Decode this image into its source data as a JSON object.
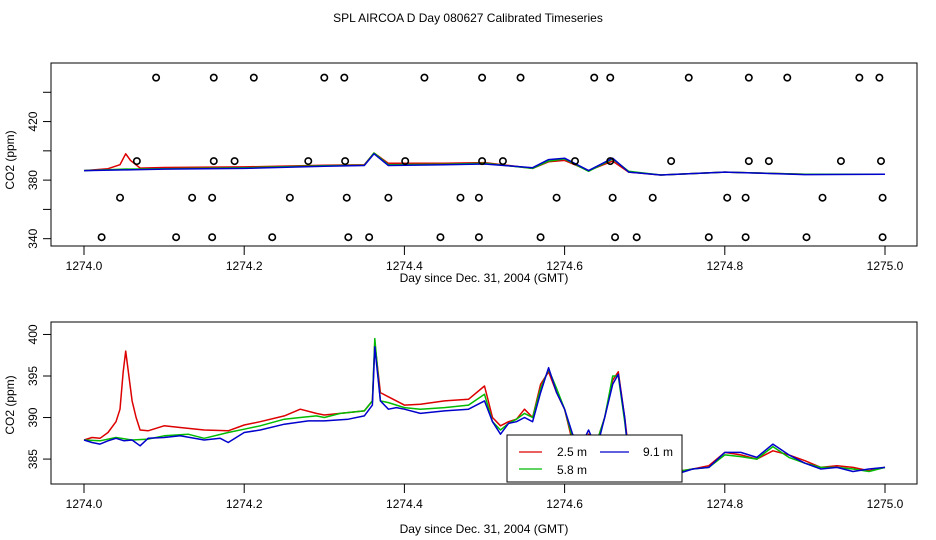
{
  "title": "SPL AIRCOA D  Day 080627  Calibrated Timeseries",
  "colors": {
    "2.5 m": "#dd0000",
    "5.8 m": "#00bb00",
    "9.1 m": "#0000cc",
    "axes": "#000000"
  },
  "chart_data": [
    {
      "type": "line",
      "xlabel": "Day since Dec. 31, 2004 (GMT)",
      "ylabel": "CO2 (ppm)",
      "xlim": [
        1274.0,
        1275.0
      ],
      "ylim": [
        335,
        460
      ],
      "xticks": [
        "1274.0",
        "1274.2",
        "1274.4",
        "1274.6",
        "1274.8",
        "1275.0"
      ],
      "yticks": [
        "340",
        "380",
        "420"
      ],
      "grid": false,
      "series": [
        {
          "name": "2.5 m",
          "color": "#dd0000",
          "x": [
            1274.0,
            1274.03,
            1274.045,
            1274.052,
            1274.058,
            1274.07,
            1274.1,
            1274.2,
            1274.3,
            1274.35,
            1274.362,
            1274.38,
            1274.45,
            1274.5,
            1274.56,
            1274.58,
            1274.6,
            1274.63,
            1274.66,
            1274.68,
            1274.72,
            1274.8,
            1274.9,
            1275.0
          ],
          "y": [
            386.5,
            387.8,
            390.5,
            398.0,
            393.5,
            388.2,
            388.6,
            389.0,
            390.2,
            390.5,
            398.5,
            391.5,
            391.5,
            392.0,
            388.0,
            392.5,
            393.5,
            386.5,
            393.0,
            385.5,
            383.5,
            385.5,
            384.0,
            384.0
          ]
        },
        {
          "name": "5.8 m",
          "color": "#00bb00",
          "x": [
            1274.0,
            1274.05,
            1274.1,
            1274.2,
            1274.3,
            1274.35,
            1274.362,
            1274.38,
            1274.45,
            1274.5,
            1274.56,
            1274.58,
            1274.6,
            1274.63,
            1274.66,
            1274.68,
            1274.72,
            1274.8,
            1274.9,
            1275.0
          ],
          "y": [
            386.5,
            387.5,
            387.8,
            388.5,
            389.8,
            390.2,
            398.5,
            390.5,
            390.8,
            391.5,
            388.0,
            393.0,
            394.5,
            386.0,
            394.5,
            386.0,
            383.5,
            385.5,
            384.0,
            384.0
          ]
        },
        {
          "name": "9.1 m",
          "color": "#0000cc",
          "x": [
            1274.0,
            1274.05,
            1274.1,
            1274.2,
            1274.3,
            1274.35,
            1274.362,
            1274.38,
            1274.45,
            1274.5,
            1274.56,
            1274.58,
            1274.6,
            1274.63,
            1274.66,
            1274.68,
            1274.72,
            1274.8,
            1274.9,
            1275.0
          ],
          "y": [
            386.5,
            387.0,
            387.5,
            388.0,
            389.5,
            390.0,
            398.0,
            390.0,
            390.5,
            391.0,
            388.5,
            394.0,
            395.0,
            386.5,
            395.0,
            385.5,
            383.5,
            385.5,
            383.8,
            384.0
          ]
        }
      ],
      "outlier_markers": [
        {
          "x": 1274.09,
          "y": 450
        },
        {
          "x": 1274.162,
          "y": 450
        },
        {
          "x": 1274.212,
          "y": 450
        },
        {
          "x": 1274.3,
          "y": 450
        },
        {
          "x": 1274.325,
          "y": 450
        },
        {
          "x": 1274.425,
          "y": 450
        },
        {
          "x": 1274.497,
          "y": 450
        },
        {
          "x": 1274.545,
          "y": 450
        },
        {
          "x": 1274.637,
          "y": 450
        },
        {
          "x": 1274.657,
          "y": 450
        },
        {
          "x": 1274.755,
          "y": 450
        },
        {
          "x": 1274.83,
          "y": 450
        },
        {
          "x": 1274.878,
          "y": 450
        },
        {
          "x": 1274.968,
          "y": 450
        },
        {
          "x": 1274.993,
          "y": 450
        },
        {
          "x": 1274.066,
          "y": 393
        },
        {
          "x": 1274.162,
          "y": 393
        },
        {
          "x": 1274.188,
          "y": 393
        },
        {
          "x": 1274.28,
          "y": 393
        },
        {
          "x": 1274.326,
          "y": 393
        },
        {
          "x": 1274.401,
          "y": 393
        },
        {
          "x": 1274.497,
          "y": 393
        },
        {
          "x": 1274.523,
          "y": 393
        },
        {
          "x": 1274.613,
          "y": 393
        },
        {
          "x": 1274.657,
          "y": 393
        },
        {
          "x": 1274.733,
          "y": 393
        },
        {
          "x": 1274.83,
          "y": 393
        },
        {
          "x": 1274.855,
          "y": 393
        },
        {
          "x": 1274.945,
          "y": 393
        },
        {
          "x": 1274.995,
          "y": 393
        },
        {
          "x": 1274.045,
          "y": 368
        },
        {
          "x": 1274.135,
          "y": 368
        },
        {
          "x": 1274.16,
          "y": 368
        },
        {
          "x": 1274.257,
          "y": 368
        },
        {
          "x": 1274.328,
          "y": 368
        },
        {
          "x": 1274.38,
          "y": 368
        },
        {
          "x": 1274.47,
          "y": 368
        },
        {
          "x": 1274.493,
          "y": 368
        },
        {
          "x": 1274.59,
          "y": 368
        },
        {
          "x": 1274.66,
          "y": 368
        },
        {
          "x": 1274.71,
          "y": 368
        },
        {
          "x": 1274.803,
          "y": 368
        },
        {
          "x": 1274.826,
          "y": 368
        },
        {
          "x": 1274.922,
          "y": 368
        },
        {
          "x": 1274.997,
          "y": 368
        },
        {
          "x": 1274.022,
          "y": 341
        },
        {
          "x": 1274.115,
          "y": 341
        },
        {
          "x": 1274.16,
          "y": 341
        },
        {
          "x": 1274.235,
          "y": 341
        },
        {
          "x": 1274.33,
          "y": 341
        },
        {
          "x": 1274.356,
          "y": 341
        },
        {
          "x": 1274.445,
          "y": 341
        },
        {
          "x": 1274.493,
          "y": 341
        },
        {
          "x": 1274.57,
          "y": 341
        },
        {
          "x": 1274.663,
          "y": 341
        },
        {
          "x": 1274.69,
          "y": 341
        },
        {
          "x": 1274.78,
          "y": 341
        },
        {
          "x": 1274.826,
          "y": 341
        },
        {
          "x": 1274.902,
          "y": 341
        },
        {
          "x": 1274.997,
          "y": 341
        }
      ]
    },
    {
      "type": "line",
      "xlabel": "Day since Dec. 31, 2004 (GMT)",
      "ylabel": "CO2 (ppm)",
      "xlim": [
        1274.0,
        1275.0
      ],
      "ylim": [
        382,
        401.5
      ],
      "xticks": [
        "1274.0",
        "1274.2",
        "1274.4",
        "1274.6",
        "1274.8",
        "1275.0"
      ],
      "yticks": [
        "385",
        "390",
        "395",
        "400"
      ],
      "grid": false,
      "legend": {
        "position": "bottom-right",
        "entries": [
          "2.5 m",
          "5.8 m",
          "9.1 m"
        ]
      },
      "series": [
        {
          "name": "2.5 m",
          "color": "#dd0000",
          "x": [
            1274.0,
            1274.01,
            1274.02,
            1274.03,
            1274.04,
            1274.045,
            1274.049,
            1274.052,
            1274.056,
            1274.06,
            1274.065,
            1274.07,
            1274.08,
            1274.1,
            1274.12,
            1274.15,
            1274.18,
            1274.2,
            1274.22,
            1274.25,
            1274.27,
            1274.29,
            1274.3,
            1274.32,
            1274.35,
            1274.36,
            1274.363,
            1274.37,
            1274.38,
            1274.4,
            1274.42,
            1274.45,
            1274.48,
            1274.5,
            1274.51,
            1274.52,
            1274.53,
            1274.54,
            1274.55,
            1274.56,
            1274.57,
            1274.58,
            1274.59,
            1274.6,
            1274.61,
            1274.62,
            1274.63,
            1274.64,
            1274.65,
            1274.66,
            1274.667,
            1274.675,
            1274.68,
            1274.69,
            1274.7,
            1274.72,
            1274.74,
            1274.76,
            1274.78,
            1274.8,
            1274.82,
            1274.84,
            1274.86,
            1274.88,
            1274.9,
            1274.92,
            1274.94,
            1274.96,
            1274.98,
            1275.0
          ],
          "y": [
            387.3,
            387.6,
            387.5,
            388.2,
            389.5,
            391.0,
            395.5,
            398.0,
            395.0,
            392.0,
            390.0,
            388.5,
            388.4,
            389.0,
            388.8,
            388.5,
            388.4,
            389.1,
            389.5,
            390.2,
            391.0,
            390.5,
            390.3,
            390.5,
            390.8,
            392.0,
            399.0,
            393.0,
            392.5,
            391.5,
            391.6,
            392.0,
            392.2,
            393.8,
            390.0,
            389.0,
            389.5,
            389.8,
            391.0,
            390.0,
            394.0,
            395.5,
            393.0,
            391.0,
            387.0,
            386.0,
            388.0,
            387.0,
            390.0,
            394.5,
            395.5,
            390.0,
            386.0,
            385.5,
            384.0,
            383.5,
            383.5,
            383.8,
            384.2,
            385.8,
            385.5,
            385.0,
            386.0,
            385.5,
            384.8,
            384.0,
            384.2,
            384.0,
            383.6,
            384.0
          ]
        },
        {
          "name": "5.8 m",
          "color": "#00bb00",
          "x": [
            1274.0,
            1274.02,
            1274.04,
            1274.06,
            1274.08,
            1274.1,
            1274.13,
            1274.15,
            1274.18,
            1274.2,
            1274.22,
            1274.25,
            1274.27,
            1274.29,
            1274.3,
            1274.32,
            1274.35,
            1274.36,
            1274.363,
            1274.37,
            1274.38,
            1274.4,
            1274.42,
            1274.45,
            1274.48,
            1274.5,
            1274.51,
            1274.52,
            1274.53,
            1274.54,
            1274.55,
            1274.56,
            1274.57,
            1274.58,
            1274.59,
            1274.6,
            1274.61,
            1274.62,
            1274.63,
            1274.64,
            1274.65,
            1274.66,
            1274.667,
            1274.675,
            1274.68,
            1274.69,
            1274.7,
            1274.72,
            1274.74,
            1274.76,
            1274.78,
            1274.8,
            1274.82,
            1274.84,
            1274.86,
            1274.88,
            1274.9,
            1274.92,
            1274.94,
            1274.96,
            1274.98,
            1275.0
          ],
          "y": [
            387.3,
            387.2,
            387.6,
            387.3,
            387.4,
            387.8,
            388.0,
            387.5,
            388.2,
            388.6,
            389.0,
            389.8,
            390.0,
            390.2,
            390.0,
            390.5,
            390.8,
            392.0,
            399.5,
            392.0,
            391.8,
            391.2,
            391.0,
            391.2,
            391.5,
            392.8,
            389.5,
            388.5,
            389.3,
            389.8,
            390.5,
            390.0,
            393.5,
            395.8,
            393.5,
            391.0,
            387.5,
            385.0,
            387.8,
            387.0,
            390.0,
            395.0,
            395.0,
            389.5,
            385.5,
            385.0,
            384.0,
            383.2,
            383.5,
            383.8,
            384.0,
            385.5,
            385.3,
            385.0,
            386.5,
            385.2,
            384.5,
            384.0,
            384.0,
            383.8,
            383.5,
            384.0
          ]
        },
        {
          "name": "9.1 m",
          "color": "#0000cc",
          "x": [
            1274.0,
            1274.01,
            1274.02,
            1274.03,
            1274.04,
            1274.05,
            1274.06,
            1274.07,
            1274.08,
            1274.1,
            1274.12,
            1274.15,
            1274.17,
            1274.18,
            1274.2,
            1274.22,
            1274.25,
            1274.28,
            1274.3,
            1274.33,
            1274.35,
            1274.36,
            1274.363,
            1274.37,
            1274.38,
            1274.39,
            1274.4,
            1274.42,
            1274.45,
            1274.48,
            1274.5,
            1274.51,
            1274.52,
            1274.53,
            1274.54,
            1274.55,
            1274.56,
            1274.57,
            1274.58,
            1274.59,
            1274.6,
            1274.61,
            1274.62,
            1274.63,
            1274.64,
            1274.65,
            1274.66,
            1274.667,
            1274.675,
            1274.68,
            1274.69,
            1274.7,
            1274.72,
            1274.74,
            1274.76,
            1274.78,
            1274.8,
            1274.82,
            1274.84,
            1274.86,
            1274.88,
            1274.9,
            1274.92,
            1274.94,
            1274.96,
            1274.98,
            1275.0
          ],
          "y": [
            387.3,
            387.0,
            386.8,
            387.2,
            387.5,
            387.2,
            387.3,
            386.6,
            387.5,
            387.6,
            387.8,
            387.3,
            387.5,
            387.0,
            388.2,
            388.5,
            389.2,
            389.6,
            389.6,
            389.8,
            390.2,
            391.5,
            398.5,
            392.0,
            391.0,
            391.2,
            391.0,
            390.5,
            390.8,
            391.0,
            392.0,
            389.5,
            388.0,
            389.3,
            389.5,
            390.0,
            389.5,
            393.0,
            396.0,
            393.0,
            391.0,
            388.0,
            386.5,
            388.5,
            386.2,
            390.0,
            394.0,
            395.2,
            390.0,
            385.0,
            386.0,
            384.0,
            383.0,
            383.2,
            383.8,
            384.0,
            385.8,
            385.8,
            385.2,
            386.8,
            385.5,
            384.5,
            383.8,
            384.0,
            383.5,
            383.8,
            384.0
          ]
        }
      ]
    }
  ]
}
